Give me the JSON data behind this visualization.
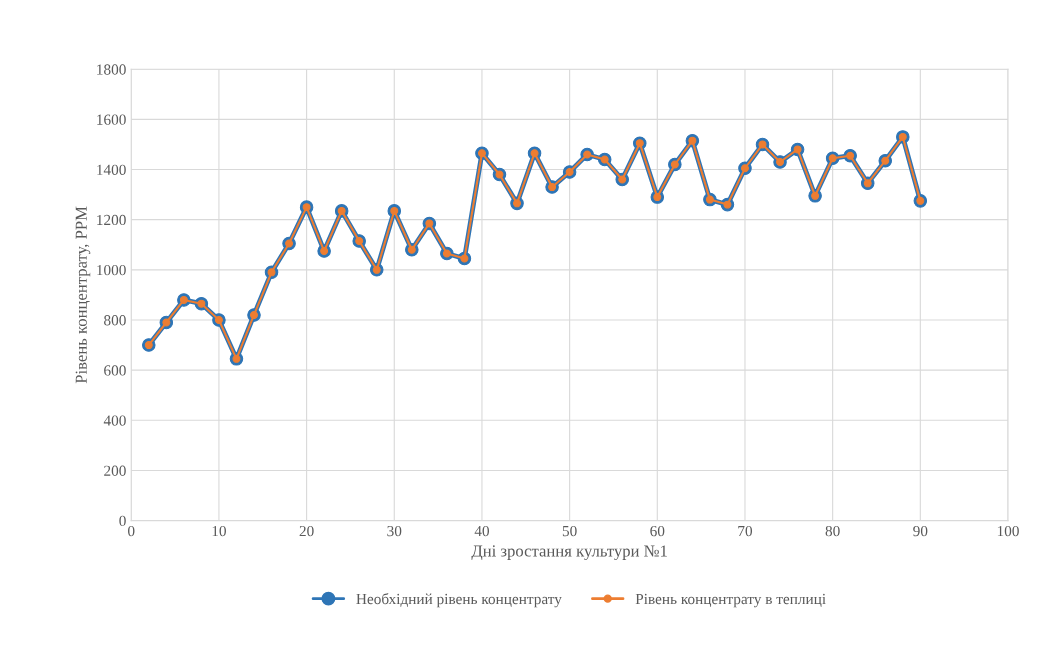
{
  "chart_data": {
    "type": "line",
    "xlabel": "Дні зростання культури №1",
    "ylabel": "Рівень концентрату, PPM",
    "x": [
      2,
      4,
      6,
      8,
      10,
      12,
      14,
      16,
      18,
      20,
      22,
      24,
      26,
      28,
      30,
      32,
      34,
      36,
      38,
      40,
      42,
      44,
      46,
      48,
      50,
      52,
      54,
      56,
      58,
      60,
      62,
      64,
      66,
      68,
      70,
      72,
      74,
      76,
      78,
      80,
      82,
      84,
      86,
      88,
      90
    ],
    "series": [
      {
        "name": "Необхідний рівень концентрату",
        "color": "#2e75b6",
        "values": [
          700,
          790,
          880,
          865,
          800,
          645,
          820,
          990,
          1105,
          1250,
          1075,
          1235,
          1115,
          1000,
          1235,
          1080,
          1185,
          1065,
          1045,
          1465,
          1380,
          1265,
          1465,
          1330,
          1390,
          1460,
          1440,
          1360,
          1505,
          1290,
          1420,
          1515,
          1280,
          1260,
          1405,
          1500,
          1430,
          1480,
          1295,
          1445,
          1455,
          1345,
          1435,
          1530,
          1275
        ]
      },
      {
        "name": "Рівень концентрату в теплиці",
        "color": "#ed7d31",
        "values": [
          700,
          790,
          880,
          865,
          800,
          645,
          820,
          990,
          1105,
          1250,
          1075,
          1235,
          1115,
          1000,
          1235,
          1080,
          1185,
          1065,
          1045,
          1465,
          1380,
          1265,
          1465,
          1330,
          1390,
          1460,
          1440,
          1360,
          1505,
          1290,
          1420,
          1515,
          1280,
          1260,
          1405,
          1500,
          1430,
          1480,
          1295,
          1445,
          1455,
          1345,
          1435,
          1530,
          1275
        ]
      }
    ],
    "xlim": [
      0,
      100
    ],
    "xticks": [
      0,
      10,
      20,
      30,
      40,
      50,
      60,
      70,
      80,
      90,
      100
    ],
    "ylim": [
      0,
      1800
    ],
    "yticks": [
      0,
      200,
      400,
      600,
      800,
      1000,
      1200,
      1400,
      1600,
      1800
    ],
    "grid": true,
    "legend": "bottom",
    "marker": "circle",
    "line_style": "solid"
  }
}
